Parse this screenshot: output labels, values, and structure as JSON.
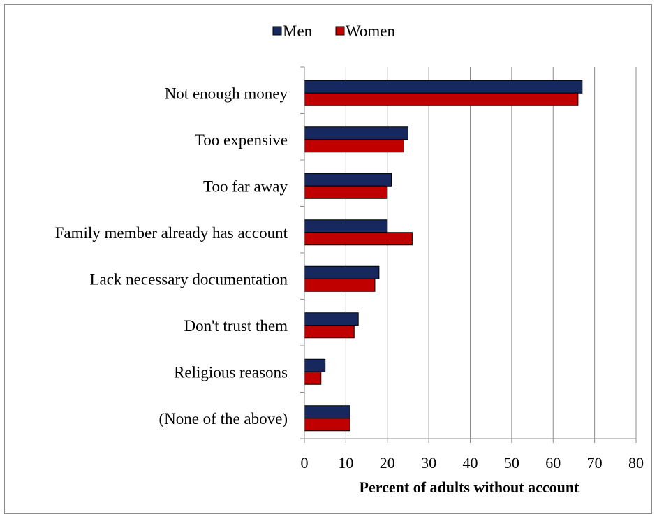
{
  "chart_data": {
    "type": "bar",
    "orientation": "horizontal",
    "categories": [
      "Not enough money",
      "Too expensive",
      "Too far away",
      "Family member already has account",
      "Lack necessary documentation",
      "Don't trust them",
      "Religious reasons",
      "(None of the above)"
    ],
    "series": [
      {
        "name": "Men",
        "color": "#17285e",
        "values": [
          67,
          25,
          21,
          20,
          18,
          13,
          5,
          11
        ]
      },
      {
        "name": "Women",
        "color": "#c00000",
        "values": [
          66,
          24,
          20,
          26,
          17,
          12,
          4,
          11
        ]
      }
    ],
    "title": "",
    "xlabel": "Percent of adults without account",
    "ylabel": "",
    "xlim": [
      0,
      80
    ],
    "xticks": [
      0,
      10,
      20,
      30,
      40,
      50,
      60,
      70,
      80
    ],
    "grid": "vertical",
    "legend_position": "top-center"
  }
}
